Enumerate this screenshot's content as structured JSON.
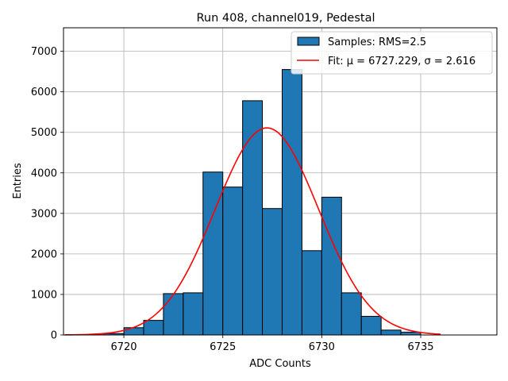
{
  "chart_data": {
    "type": "bar",
    "title": "Run 408, channel019, Pedestal",
    "xlabel": "ADC Counts",
    "ylabel": "Entries",
    "xlim": [
      6716.95,
      6738.85
    ],
    "ylim": [
      0,
      7580
    ],
    "grid": true,
    "legend_position": "top-right",
    "xticks": [
      6720,
      6725,
      6730,
      6735
    ],
    "yticks": [
      0,
      1000,
      2000,
      3000,
      4000,
      5000,
      6000,
      7000
    ],
    "bin_edges": [
      6717,
      6718,
      6719,
      6720,
      6721,
      6722,
      6723,
      6724,
      6725,
      6726,
      6727,
      6728,
      6729,
      6730,
      6731,
      6732,
      6733,
      6734,
      6735,
      6736,
      6737,
      6738
    ],
    "values": [
      0,
      5,
      35,
      180,
      360,
      1020,
      1040,
      4020,
      3650,
      5780,
      3120,
      6550,
      2080,
      3400,
      1040,
      460,
      120,
      70,
      0,
      0,
      0
    ],
    "series": [
      {
        "name": "Samples: RMS=2.5",
        "kind": "histogram",
        "color": "#1f77b4"
      },
      {
        "name": "Fit: μ = 6727.229, σ = 2.616",
        "kind": "gaussian",
        "color": "#ff0000",
        "mu": 6727.229,
        "sigma": 2.616,
        "amplitude": 5110,
        "x_range": [
          6717,
          6736
        ]
      }
    ]
  }
}
